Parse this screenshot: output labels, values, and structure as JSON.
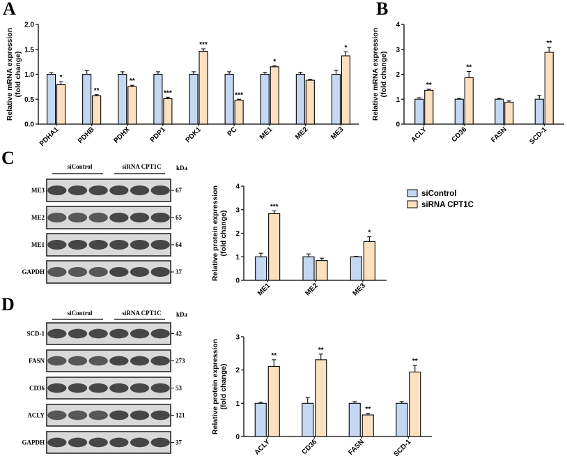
{
  "panels": {
    "A": "A",
    "B": "B",
    "C": "C",
    "D": "D"
  },
  "colors": {
    "control": "#c5d8f2",
    "sirna": "#fde0c0",
    "stroke": "#000000"
  },
  "legend": {
    "control": "siControl",
    "sirna": "siRNA CPT1C"
  },
  "chart_data": [
    {
      "id": "A",
      "type": "bar",
      "ylabel": "Relative mRNA expression\n(fold change)",
      "ylim": [
        0,
        2.0
      ],
      "yticks": [
        "0.0",
        "0.5",
        "1.0",
        "1.5",
        "2.0"
      ],
      "categories": [
        "PDHA1",
        "PDHB",
        "PDHX",
        "PDP1",
        "PDK1",
        "PC",
        "ME1",
        "ME2",
        "ME3"
      ],
      "series": [
        {
          "name": "siControl",
          "values": [
            1.0,
            1.0,
            1.0,
            1.0,
            1.0,
            1.0,
            1.0,
            1.0,
            1.0
          ],
          "errors": [
            0.03,
            0.07,
            0.05,
            0.05,
            0.05,
            0.05,
            0.04,
            0.04,
            0.08
          ]
        },
        {
          "name": "siRNA CPT1C",
          "values": [
            0.79,
            0.57,
            0.75,
            0.51,
            1.46,
            0.48,
            1.15,
            0.88,
            1.37
          ],
          "errors": [
            0.06,
            0.02,
            0.03,
            0.03,
            0.05,
            0.02,
            0.02,
            0.02,
            0.08
          ]
        }
      ],
      "annotations": [
        "*",
        "**",
        "**",
        "***",
        "***",
        "***",
        "*",
        "",
        "*"
      ]
    },
    {
      "id": "B",
      "type": "bar",
      "ylabel": "Relative mRNA expression\n(fold change)",
      "ylim": [
        0,
        4
      ],
      "yticks": [
        "0",
        "1",
        "2",
        "3",
        "4"
      ],
      "categories": [
        "ACLY",
        "CD36",
        "FASN",
        "SCD-1"
      ],
      "series": [
        {
          "name": "siControl",
          "values": [
            1.0,
            1.0,
            1.0,
            1.0
          ],
          "errors": [
            0.06,
            0.03,
            0.03,
            0.15
          ]
        },
        {
          "name": "siRNA CPT1C",
          "values": [
            1.36,
            1.86,
            0.88,
            2.88
          ],
          "errors": [
            0.04,
            0.25,
            0.05,
            0.2
          ]
        }
      ],
      "annotations": [
        "**",
        "**",
        "",
        "**"
      ]
    },
    {
      "id": "C",
      "type": "bar",
      "ylabel": "Relative protein expression\n(fold change)",
      "ylim": [
        0,
        4
      ],
      "yticks": [
        "0",
        "1",
        "2",
        "3",
        "4"
      ],
      "categories": [
        "ME1",
        "ME2",
        "ME3"
      ],
      "series": [
        {
          "name": "siControl",
          "values": [
            1.0,
            1.0,
            1.0
          ],
          "errors": [
            0.15,
            0.12,
            0.02
          ]
        },
        {
          "name": "siRNA CPT1C",
          "values": [
            2.83,
            0.84,
            1.65
          ],
          "errors": [
            0.12,
            0.1,
            0.2
          ]
        }
      ],
      "annotations": [
        "***",
        "",
        "*"
      ]
    },
    {
      "id": "D",
      "type": "bar",
      "ylabel": "Relative protein expression\n(fold change)",
      "ylim": [
        0,
        3
      ],
      "yticks": [
        "0",
        "1",
        "2",
        "3"
      ],
      "categories": [
        "ACLY",
        "CD36",
        "FASN",
        "SCD-1"
      ],
      "series": [
        {
          "name": "siControl",
          "values": [
            1.0,
            1.0,
            1.0,
            1.0
          ],
          "errors": [
            0.03,
            0.17,
            0.05,
            0.05
          ]
        },
        {
          "name": "siRNA CPT1C",
          "values": [
            2.11,
            2.31,
            0.65,
            1.94
          ],
          "errors": [
            0.2,
            0.17,
            0.04,
            0.2
          ]
        }
      ],
      "annotations": [
        "**",
        "**",
        "**",
        "**"
      ]
    }
  ],
  "blots": [
    {
      "id": "C",
      "kda_label": "kDa",
      "group_labels": [
        "siControl",
        "siRNA CPT1C"
      ],
      "bands": [
        {
          "name": "ME3",
          "kda": "67"
        },
        {
          "name": "ME2",
          "kda": "65"
        },
        {
          "name": "ME1",
          "kda": "64"
        },
        {
          "name": "GAPDH",
          "kda": "37"
        }
      ]
    },
    {
      "id": "D",
      "kda_label": "kDa",
      "group_labels": [
        "siControl",
        "siRNA CPT1C"
      ],
      "bands": [
        {
          "name": "SCD-1",
          "kda": "42"
        },
        {
          "name": "FASN",
          "kda": "273"
        },
        {
          "name": "CD36",
          "kda": "53"
        },
        {
          "name": "ACLY",
          "kda": "121"
        },
        {
          "name": "GAPDH",
          "kda": "37"
        }
      ]
    }
  ]
}
